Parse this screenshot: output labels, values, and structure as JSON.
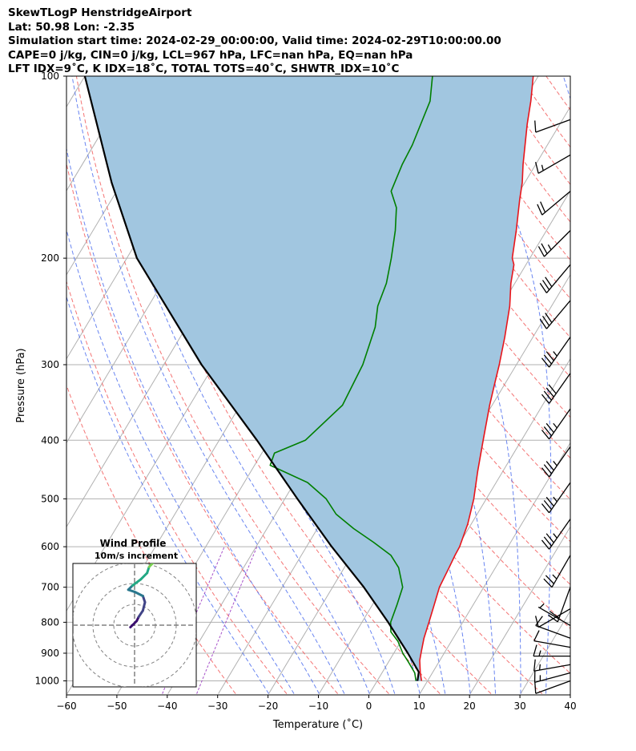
{
  "title_lines": [
    "SkewTLogP HenstridgeAirport",
    "Lat: 50.98   Lon: -2.35",
    "Simulation start time: 2024-02-29_00:00:00, Valid time: 2024-02-29T10:00:00.00",
    "CAPE=0 j/kg, CIN=0 j/kg, LCL=967 hPa, LFC=nan hPa, EQ=nan hPa",
    "LFT IDX=9˚C, K IDX=18˚C, TOTAL TOTS=40˚C, SHWTR_IDX=10˚C"
  ],
  "chart_data": {
    "type": "line",
    "subtype": "skew-T log-P",
    "xlabel": "Temperature (˚C)",
    "ylabel": "Pressure (hPa)",
    "xlim": [
      -60,
      40
    ],
    "ylim": [
      1050,
      100
    ],
    "y_scale": "log",
    "x_ticks": [
      -60,
      -50,
      -40,
      -30,
      -20,
      -10,
      0,
      10,
      20,
      30,
      40
    ],
    "y_ticks": [
      100,
      200,
      300,
      400,
      500,
      600,
      700,
      800,
      900,
      1000
    ],
    "grid": true,
    "colors": {
      "temperature": "#e8151b",
      "dewpoint": "#007f00",
      "parcel": "#000000",
      "cape_fill": "#a1c6e0",
      "dry_adiabats": "#f25c5c",
      "moist_adiabats": "#4466ee",
      "mixing_ratio": "#9d3fc4",
      "isotherms": "#b0b0b0"
    },
    "series": [
      {
        "key": "temperature",
        "points": [
          [
            1000,
            8.8
          ],
          [
            970,
            7.6
          ],
          [
            925,
            6.0
          ],
          [
            900,
            5.4
          ],
          [
            850,
            4.2
          ],
          [
            800,
            3.3
          ],
          [
            750,
            2.3
          ],
          [
            700,
            1.2
          ],
          [
            650,
            0.8
          ],
          [
            620,
            0.5
          ],
          [
            600,
            0.4
          ],
          [
            550,
            -0.7
          ],
          [
            500,
            -2.5
          ],
          [
            450,
            -5.0
          ],
          [
            400,
            -7.6
          ],
          [
            350,
            -10.5
          ],
          [
            320,
            -12.2
          ],
          [
            300,
            -13.4
          ],
          [
            270,
            -15.6
          ],
          [
            240,
            -18.3
          ],
          [
            220,
            -20.8
          ],
          [
            205,
            -22.4
          ],
          [
            200,
            -23.5
          ],
          [
            180,
            -26.0
          ],
          [
            160,
            -29.0
          ],
          [
            150,
            -30.5
          ],
          [
            140,
            -32.5
          ],
          [
            120,
            -36.5
          ],
          [
            110,
            -38.5
          ],
          [
            100,
            -41.0
          ]
        ]
      },
      {
        "key": "dewpoint",
        "points": [
          [
            1000,
            7.7
          ],
          [
            970,
            6.5
          ],
          [
            930,
            3.9
          ],
          [
            900,
            1.8
          ],
          [
            860,
            -0.6
          ],
          [
            830,
            -3.1
          ],
          [
            800,
            -4.3
          ],
          [
            750,
            -5.1
          ],
          [
            700,
            -6.1
          ],
          [
            650,
            -9.2
          ],
          [
            620,
            -12.2
          ],
          [
            590,
            -17.2
          ],
          [
            560,
            -22.8
          ],
          [
            530,
            -28.0
          ],
          [
            500,
            -31.8
          ],
          [
            470,
            -37.4
          ],
          [
            440,
            -46.9
          ],
          [
            420,
            -47.5
          ],
          [
            400,
            -42.9
          ],
          [
            350,
            -39.7
          ],
          [
            300,
            -40.5
          ],
          [
            260,
            -42.5
          ],
          [
            240,
            -44.5
          ],
          [
            220,
            -45.5
          ],
          [
            200,
            -47.5
          ],
          [
            180,
            -50.0
          ],
          [
            165,
            -52.5
          ],
          [
            155,
            -55.5
          ],
          [
            140,
            -56.5
          ],
          [
            130,
            -56.8
          ],
          [
            110,
            -58.5
          ],
          [
            100,
            -61.0
          ]
        ]
      },
      {
        "key": "parcel",
        "points": [
          [
            1000,
            8.0
          ],
          [
            967,
            7.2
          ],
          [
            900,
            2.8
          ],
          [
            800,
            -4.8
          ],
          [
            700,
            -13.8
          ],
          [
            600,
            -25.0
          ],
          [
            500,
            -37.5
          ],
          [
            400,
            -52.5
          ],
          [
            300,
            -72.5
          ],
          [
            200,
            -98.0
          ],
          [
            150,
            -112.0
          ],
          [
            100,
            -130.0
          ]
        ]
      }
    ],
    "wind_barbs": [
      {
        "pressure": 1000,
        "speed_kt": 10,
        "direction_deg": 250
      },
      {
        "pressure": 970,
        "speed_kt": 15,
        "direction_deg": 255
      },
      {
        "pressure": 940,
        "speed_kt": 15,
        "direction_deg": 260
      },
      {
        "pressure": 910,
        "speed_kt": 15,
        "direction_deg": 270
      },
      {
        "pressure": 880,
        "speed_kt": 10,
        "direction_deg": 280
      },
      {
        "pressure": 850,
        "speed_kt": 10,
        "direction_deg": 290
      },
      {
        "pressure": 810,
        "speed_kt": 5,
        "direction_deg": 300
      },
      {
        "pressure": 760,
        "speed_kt": 10,
        "direction_deg": 240
      },
      {
        "pressure": 700,
        "speed_kt": 20,
        "direction_deg": 200
      },
      {
        "pressure": 620,
        "speed_kt": 25,
        "direction_deg": 210
      },
      {
        "pressure": 540,
        "speed_kt": 35,
        "direction_deg": 215
      },
      {
        "pressure": 470,
        "speed_kt": 35,
        "direction_deg": 215
      },
      {
        "pressure": 410,
        "speed_kt": 35,
        "direction_deg": 215
      },
      {
        "pressure": 355,
        "speed_kt": 35,
        "direction_deg": 215
      },
      {
        "pressure": 310,
        "speed_kt": 40,
        "direction_deg": 215
      },
      {
        "pressure": 270,
        "speed_kt": 35,
        "direction_deg": 215
      },
      {
        "pressure": 235,
        "speed_kt": 30,
        "direction_deg": 220
      },
      {
        "pressure": 205,
        "speed_kt": 30,
        "direction_deg": 220
      },
      {
        "pressure": 180,
        "speed_kt": 25,
        "direction_deg": 225
      },
      {
        "pressure": 155,
        "speed_kt": 20,
        "direction_deg": 230
      },
      {
        "pressure": 135,
        "speed_kt": 15,
        "direction_deg": 240
      },
      {
        "pressure": 118,
        "speed_kt": 10,
        "direction_deg": 250
      }
    ],
    "hodograph": {
      "title": "Wind Profile",
      "subtitle": "10m/s increment",
      "ring_spacing_ms": 10,
      "points": [
        [
          -2,
          -1
        ],
        [
          -1,
          0
        ],
        [
          1,
          2
        ],
        [
          2,
          4
        ],
        [
          4,
          7
        ],
        [
          5,
          11
        ],
        [
          4,
          14
        ],
        [
          0,
          16
        ],
        [
          -3,
          17
        ],
        [
          -1,
          19
        ],
        [
          3,
          22
        ],
        [
          6,
          25
        ],
        [
          7,
          28
        ],
        [
          10,
          31
        ],
        [
          13,
          34
        ],
        [
          15,
          36
        ],
        [
          16,
          38
        ],
        [
          17,
          40
        ]
      ],
      "colormap": [
        "#3b0f70",
        "#414487",
        "#2a788e",
        "#22a884",
        "#7ad151",
        "#d9e64a"
      ]
    }
  }
}
